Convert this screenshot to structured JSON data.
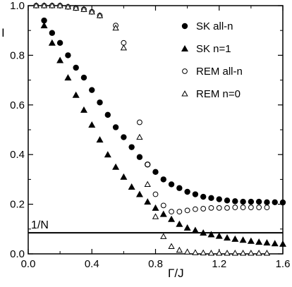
{
  "chart_data": {
    "type": "scatter",
    "title": "",
    "xlabel": "Γ/J",
    "ylabel": "I",
    "xlim": [
      0,
      1.6
    ],
    "ylim": [
      0,
      1.0
    ],
    "xticks": [
      0.0,
      0.4,
      0.8,
      1.2,
      1.6
    ],
    "xtick_labels": [
      "0.0",
      "0.4",
      "0.8",
      "1.2",
      "1.6"
    ],
    "yticks": [
      0.0,
      0.2,
      0.4,
      0.6,
      0.8,
      1.0
    ],
    "ytick_labels": [
      "0.0",
      "0.2",
      "0.4",
      "0.6",
      "0.8",
      "1.0"
    ],
    "grid": false,
    "legend_position": "top-right",
    "reference_line": {
      "y": 0.085,
      "label": "1/N"
    },
    "series": [
      {
        "name": "SK all-n",
        "marker": "filled-circle",
        "x": [
          0.1,
          0.15,
          0.2,
          0.25,
          0.3,
          0.35,
          0.4,
          0.45,
          0.5,
          0.55,
          0.6,
          0.65,
          0.7,
          0.75,
          0.8,
          0.85,
          0.9,
          0.95,
          1.0,
          1.05,
          1.1,
          1.15,
          1.2,
          1.25,
          1.3,
          1.35,
          1.4,
          1.45,
          1.5,
          1.55,
          1.6
        ],
        "y": [
          0.94,
          0.89,
          0.85,
          0.8,
          0.75,
          0.71,
          0.66,
          0.61,
          0.56,
          0.51,
          0.47,
          0.43,
          0.39,
          0.36,
          0.33,
          0.3,
          0.28,
          0.265,
          0.25,
          0.24,
          0.23,
          0.225,
          0.22,
          0.215,
          0.212,
          0.21,
          0.21,
          0.21,
          0.208,
          0.208,
          0.207
        ]
      },
      {
        "name": "SK n=1",
        "marker": "filled-triangle",
        "x": [
          0.1,
          0.15,
          0.2,
          0.25,
          0.3,
          0.35,
          0.4,
          0.45,
          0.5,
          0.55,
          0.6,
          0.65,
          0.7,
          0.75,
          0.8,
          0.85,
          0.9,
          0.95,
          1.0,
          1.05,
          1.1,
          1.15,
          1.2,
          1.25,
          1.3,
          1.35,
          1.4,
          1.45,
          1.5,
          1.55,
          1.6
        ],
        "y": [
          0.92,
          0.85,
          0.78,
          0.71,
          0.64,
          0.58,
          0.52,
          0.46,
          0.4,
          0.35,
          0.31,
          0.27,
          0.24,
          0.21,
          0.185,
          0.16,
          0.14,
          0.12,
          0.105,
          0.095,
          0.085,
          0.078,
          0.072,
          0.065,
          0.06,
          0.056,
          0.052,
          0.048,
          0.045,
          0.042,
          0.04
        ]
      },
      {
        "name": "REM all-n",
        "marker": "open-circle",
        "x": [
          0.05,
          0.1,
          0.15,
          0.2,
          0.25,
          0.3,
          0.35,
          0.4,
          0.45,
          0.55,
          0.6,
          0.7,
          0.75,
          0.8,
          0.85,
          0.9,
          0.95,
          1.0,
          1.05,
          1.1,
          1.15,
          1.2,
          1.25,
          1.3,
          1.35,
          1.4,
          1.45,
          1.5
        ],
        "y": [
          1.0,
          1.0,
          1.0,
          1.0,
          0.995,
          0.99,
          0.985,
          0.975,
          0.96,
          0.92,
          0.85,
          0.53,
          0.36,
          0.24,
          0.195,
          0.17,
          0.17,
          0.175,
          0.18,
          0.182,
          0.185,
          0.185,
          0.185,
          0.187,
          0.187,
          0.187,
          0.187,
          0.187
        ]
      },
      {
        "name": "REM n=0",
        "marker": "open-triangle",
        "x": [
          0.05,
          0.1,
          0.15,
          0.2,
          0.25,
          0.3,
          0.35,
          0.4,
          0.45,
          0.55,
          0.6,
          0.7,
          0.75,
          0.8,
          0.85,
          0.9,
          0.95,
          1.0,
          1.05,
          1.1,
          1.15,
          1.2,
          1.25,
          1.3,
          1.35,
          1.4,
          1.45,
          1.5
        ],
        "y": [
          1.0,
          1.0,
          1.0,
          1.0,
          0.995,
          0.99,
          0.985,
          0.975,
          0.96,
          0.91,
          0.83,
          0.47,
          0.28,
          0.15,
          0.07,
          0.03,
          0.015,
          0.008,
          0.005,
          0.004,
          0.003,
          0.003,
          0.003,
          0.003,
          0.003,
          0.003,
          0.003,
          0.003
        ]
      }
    ]
  }
}
